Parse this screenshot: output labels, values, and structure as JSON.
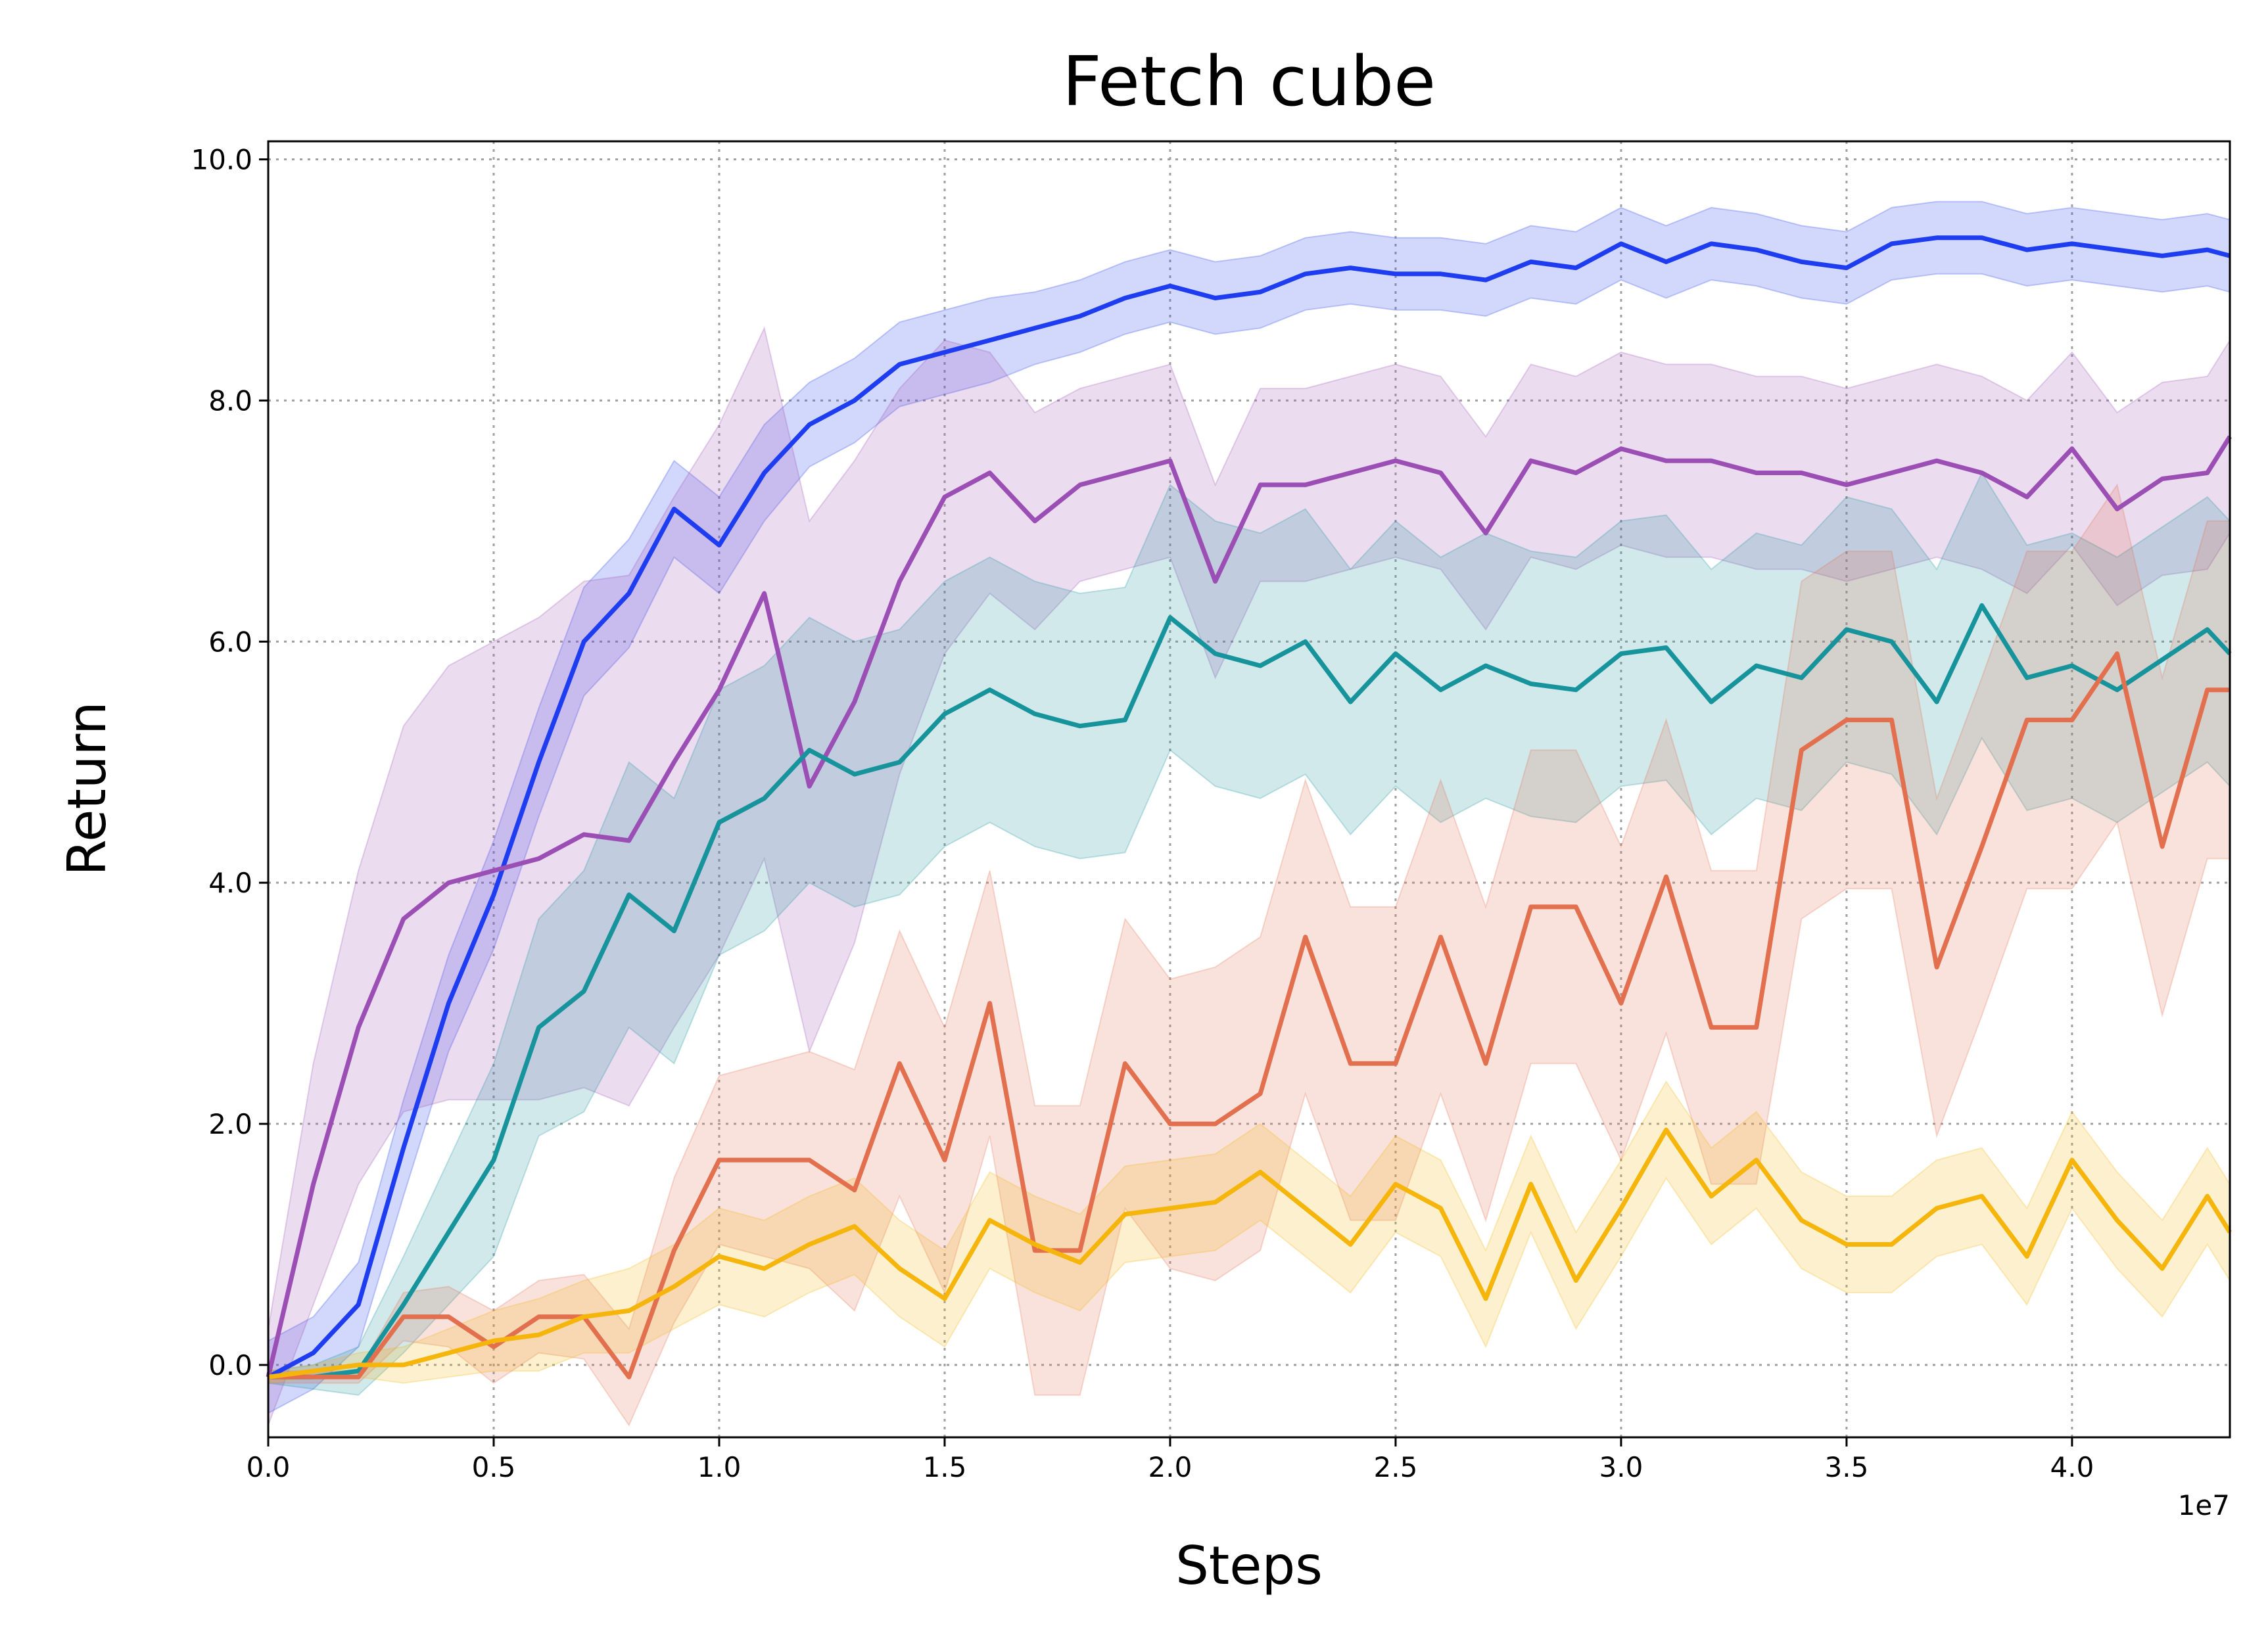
{
  "chart_data": {
    "type": "line",
    "title": "Fetch cube",
    "xlabel": "Steps",
    "ylabel": "Return",
    "x_offset_label": "1e7",
    "xlim": [
      0,
      4.35
    ],
    "ylim": [
      -0.6,
      10.15
    ],
    "xticks": [
      "0.0",
      "0.5",
      "1.0",
      "1.5",
      "2.0",
      "2.5",
      "3.0",
      "3.5",
      "4.0"
    ],
    "yticks": [
      "0.0",
      "2.0",
      "4.0",
      "6.0",
      "8.0",
      "10.0"
    ],
    "grid": true,
    "x": [
      0.0,
      0.1,
      0.2,
      0.3,
      0.4,
      0.5,
      0.6,
      0.7,
      0.8,
      0.9,
      1.0,
      1.1,
      1.2,
      1.3,
      1.4,
      1.5,
      1.6,
      1.7,
      1.8,
      1.9,
      2.0,
      2.1,
      2.2,
      2.3,
      2.4,
      2.5,
      2.6,
      2.7,
      2.8,
      2.9,
      3.0,
      3.1,
      3.2,
      3.3,
      3.4,
      3.5,
      3.6,
      3.7,
      3.8,
      3.9,
      4.0,
      4.1,
      4.2,
      4.3,
      4.35
    ],
    "series": [
      {
        "color": "#1f3df0",
        "values": [
          -0.1,
          0.1,
          0.5,
          1.8,
          3.0,
          3.9,
          5.0,
          6.0,
          6.4,
          7.1,
          6.8,
          7.4,
          7.8,
          8.0,
          8.3,
          8.4,
          8.5,
          8.6,
          8.7,
          8.85,
          8.95,
          8.85,
          8.9,
          9.05,
          9.1,
          9.05,
          9.05,
          9.0,
          9.15,
          9.1,
          9.3,
          9.15,
          9.3,
          9.25,
          9.15,
          9.1,
          9.3,
          9.35,
          9.35,
          9.25,
          9.3,
          9.25,
          9.2,
          9.25,
          9.2
        ],
        "band": [
          0.3,
          0.3,
          0.35,
          0.4,
          0.4,
          0.45,
          0.45,
          0.45,
          0.45,
          0.4,
          0.4,
          0.4,
          0.35,
          0.35,
          0.35,
          0.35,
          0.35,
          0.3,
          0.3,
          0.3,
          0.3,
          0.3,
          0.3,
          0.3,
          0.3,
          0.3,
          0.3,
          0.3,
          0.3,
          0.3,
          0.3,
          0.3,
          0.3,
          0.3,
          0.3,
          0.3,
          0.3,
          0.3,
          0.3,
          0.3,
          0.3,
          0.3,
          0.3,
          0.3,
          0.3
        ]
      },
      {
        "color": "#9b4fb5",
        "values": [
          -0.1,
          1.5,
          2.8,
          3.7,
          4.0,
          4.1,
          4.2,
          4.4,
          4.35,
          5.0,
          5.6,
          6.4,
          4.8,
          5.5,
          6.5,
          7.2,
          7.4,
          7.0,
          7.3,
          7.4,
          7.5,
          6.5,
          7.3,
          7.3,
          7.4,
          7.5,
          7.4,
          6.9,
          7.5,
          7.4,
          7.6,
          7.5,
          7.5,
          7.4,
          7.4,
          7.3,
          7.4,
          7.5,
          7.4,
          7.2,
          7.6,
          7.1,
          7.35,
          7.4,
          7.7
        ],
        "band": [
          0.4,
          1.0,
          1.3,
          1.6,
          1.8,
          1.9,
          2.0,
          2.1,
          2.2,
          2.2,
          2.2,
          2.2,
          2.2,
          2.0,
          1.6,
          1.3,
          1.0,
          0.9,
          0.8,
          0.8,
          0.8,
          0.8,
          0.8,
          0.8,
          0.8,
          0.8,
          0.8,
          0.8,
          0.8,
          0.8,
          0.8,
          0.8,
          0.8,
          0.8,
          0.8,
          0.8,
          0.8,
          0.8,
          0.8,
          0.8,
          0.8,
          0.8,
          0.8,
          0.8,
          0.8
        ]
      },
      {
        "color": "#17939c",
        "values": [
          -0.1,
          -0.1,
          -0.05,
          0.5,
          1.1,
          1.7,
          2.8,
          3.1,
          3.9,
          3.6,
          4.5,
          4.7,
          5.1,
          4.9,
          5.0,
          5.4,
          5.6,
          5.4,
          5.3,
          5.35,
          6.2,
          5.9,
          5.8,
          6.0,
          5.5,
          5.9,
          5.6,
          5.8,
          5.65,
          5.6,
          5.9,
          5.95,
          5.5,
          5.8,
          5.7,
          6.1,
          6.0,
          5.5,
          6.3,
          5.7,
          5.8,
          5.6,
          5.85,
          6.1,
          5.9
        ],
        "band": [
          0.05,
          0.1,
          0.2,
          0.4,
          0.6,
          0.8,
          0.9,
          1.0,
          1.1,
          1.1,
          1.1,
          1.1,
          1.1,
          1.1,
          1.1,
          1.1,
          1.1,
          1.1,
          1.1,
          1.1,
          1.1,
          1.1,
          1.1,
          1.1,
          1.1,
          1.1,
          1.1,
          1.1,
          1.1,
          1.1,
          1.1,
          1.1,
          1.1,
          1.1,
          1.1,
          1.1,
          1.1,
          1.1,
          1.1,
          1.1,
          1.1,
          1.1,
          1.1,
          1.1,
          1.1
        ]
      },
      {
        "color": "#e2704f",
        "values": [
          -0.1,
          -0.1,
          -0.1,
          0.4,
          0.4,
          0.15,
          0.4,
          0.4,
          -0.1,
          0.95,
          1.7,
          1.7,
          1.7,
          1.45,
          2.5,
          1.7,
          3.0,
          0.95,
          0.95,
          2.5,
          2.0,
          2.0,
          2.25,
          3.55,
          2.5,
          2.5,
          3.55,
          2.5,
          3.8,
          3.8,
          3.0,
          4.05,
          2.8,
          2.8,
          5.1,
          5.35,
          5.35,
          3.3,
          4.3,
          5.35,
          5.35,
          5.9,
          4.3,
          5.6,
          5.6
        ],
        "band": [
          0.05,
          0.05,
          0.05,
          0.2,
          0.25,
          0.3,
          0.3,
          0.35,
          0.4,
          0.6,
          0.7,
          0.8,
          0.9,
          1.0,
          1.1,
          1.1,
          1.1,
          1.2,
          1.2,
          1.2,
          1.2,
          1.3,
          1.3,
          1.3,
          1.3,
          1.3,
          1.3,
          1.3,
          1.3,
          1.3,
          1.3,
          1.3,
          1.3,
          1.3,
          1.4,
          1.4,
          1.4,
          1.4,
          1.4,
          1.4,
          1.4,
          1.4,
          1.4,
          1.4,
          1.4
        ]
      },
      {
        "color": "#f5b50a",
        "values": [
          -0.1,
          -0.05,
          0.0,
          0.0,
          0.1,
          0.2,
          0.25,
          0.4,
          0.45,
          0.65,
          0.9,
          0.8,
          1.0,
          1.15,
          0.8,
          0.55,
          1.2,
          1.0,
          0.85,
          1.25,
          1.3,
          1.35,
          1.6,
          1.3,
          1.0,
          1.5,
          1.3,
          0.55,
          1.5,
          0.7,
          1.3,
          1.95,
          1.4,
          1.7,
          1.2,
          1.0,
          1.0,
          1.3,
          1.4,
          0.9,
          1.7,
          1.2,
          0.8,
          1.4,
          1.1
        ],
        "band": [
          0.05,
          0.05,
          0.1,
          0.15,
          0.2,
          0.25,
          0.3,
          0.3,
          0.35,
          0.35,
          0.4,
          0.4,
          0.4,
          0.4,
          0.4,
          0.4,
          0.4,
          0.4,
          0.4,
          0.4,
          0.4,
          0.4,
          0.4,
          0.4,
          0.4,
          0.4,
          0.4,
          0.4,
          0.4,
          0.4,
          0.4,
          0.4,
          0.4,
          0.4,
          0.4,
          0.4,
          0.4,
          0.4,
          0.4,
          0.4,
          0.4,
          0.4,
          0.4,
          0.4,
          0.4
        ]
      }
    ]
  }
}
